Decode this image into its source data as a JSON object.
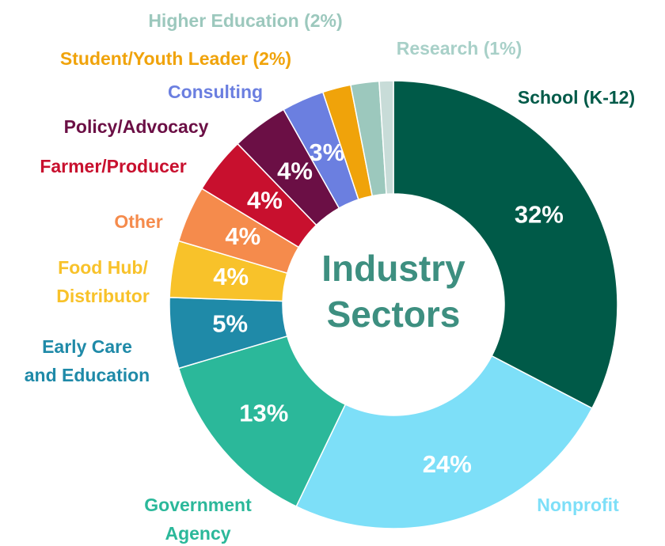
{
  "chart_data": {
    "type": "donut",
    "title": "Industry\nSectors",
    "categories": [
      "School (K-12)",
      "Nonprofit",
      "Government\nAgency",
      "Early Care\nand Education",
      "Food Hub/\nDistributor",
      "Other",
      "Farmer/Producer",
      "Policy/Advocacy",
      "Consulting",
      "Student/Youth Leader (2%)",
      "Higher Education (2%)",
      "Research (1%)"
    ],
    "values": [
      32,
      24,
      13,
      5,
      4,
      4,
      4,
      4,
      3,
      2,
      2,
      1
    ],
    "value_labels": [
      "32%",
      "24%",
      "13%",
      "5%",
      "4%",
      "4%",
      "4%",
      "4%",
      "3%",
      null,
      null,
      null
    ],
    "colors": [
      "#005a48",
      "#7ddff8",
      "#2bb89a",
      "#1f8aa8",
      "#f8c22a",
      "#f58b4c",
      "#c8102e",
      "#6b0f45",
      "#6b7fe0",
      "#f0a30a",
      "#9cc8bd",
      "#c8dcd8"
    ]
  }
}
